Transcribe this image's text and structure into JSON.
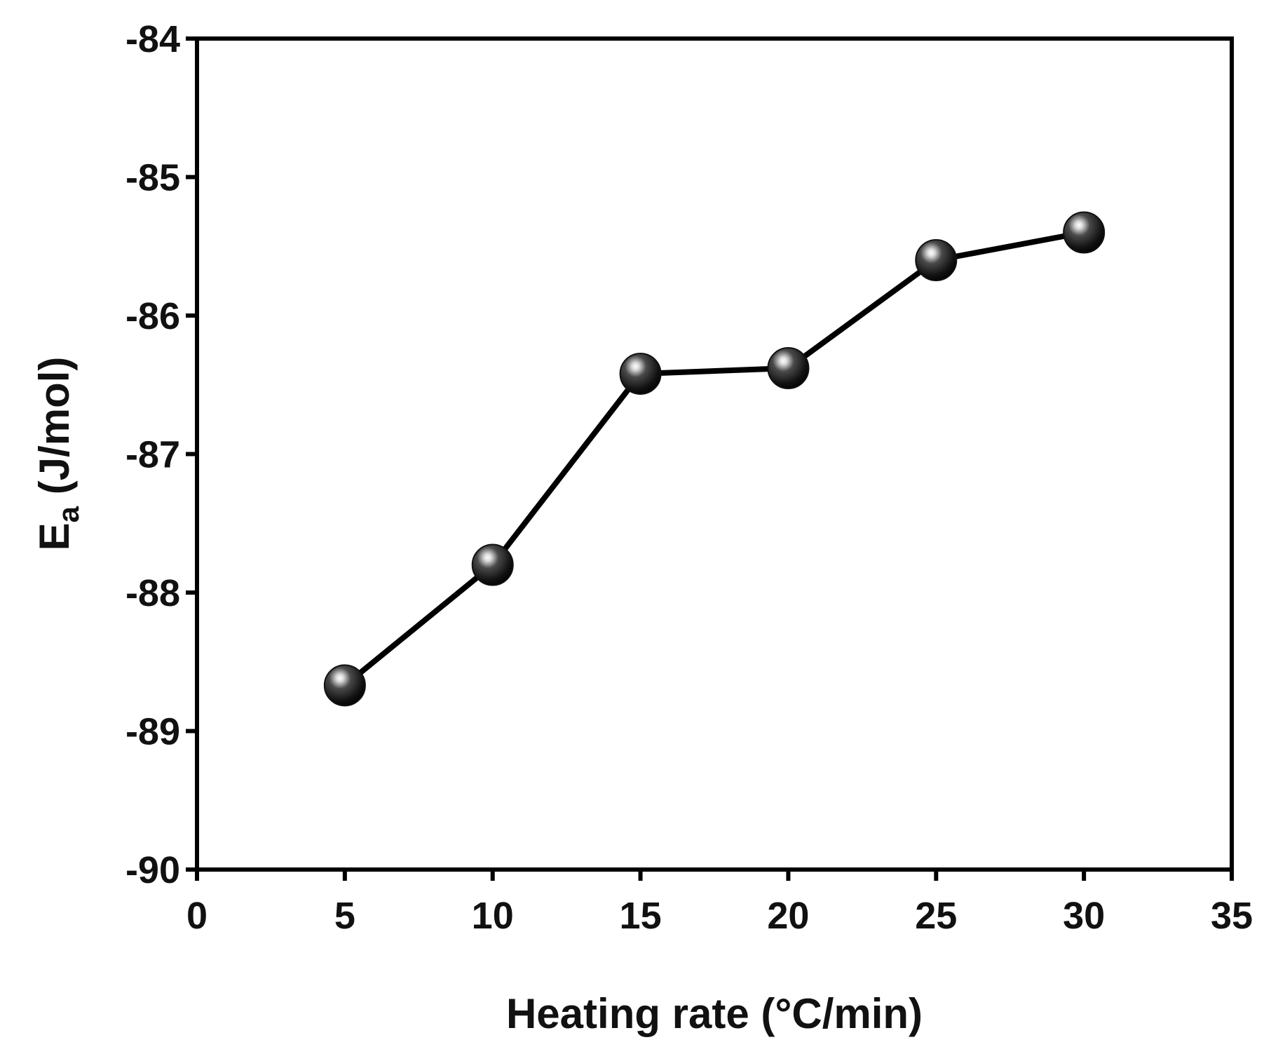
{
  "chart_data": {
    "type": "line",
    "xlabel": "Heating rate (°C/min)",
    "ylabel": {
      "symbol": "E",
      "subscript": "a",
      "unit": " (J/mol)"
    },
    "xlim": [
      0,
      35
    ],
    "ylim": [
      -90,
      -84
    ],
    "xticks": [
      "0",
      "5",
      "10",
      "15",
      "20",
      "25",
      "30",
      "35"
    ],
    "yticks": [
      "-84",
      "-85",
      "-86",
      "-87",
      "-88",
      "-89",
      "-90"
    ],
    "x": [
      5,
      10,
      15,
      20,
      25,
      30
    ],
    "y": [
      -88.67,
      -87.8,
      -86.42,
      -86.38,
      -85.6,
      -85.4
    ],
    "grid": false,
    "colors": {
      "line": "#000000",
      "marker": "#111111",
      "axis": "#000000"
    },
    "marker": "sphere"
  }
}
